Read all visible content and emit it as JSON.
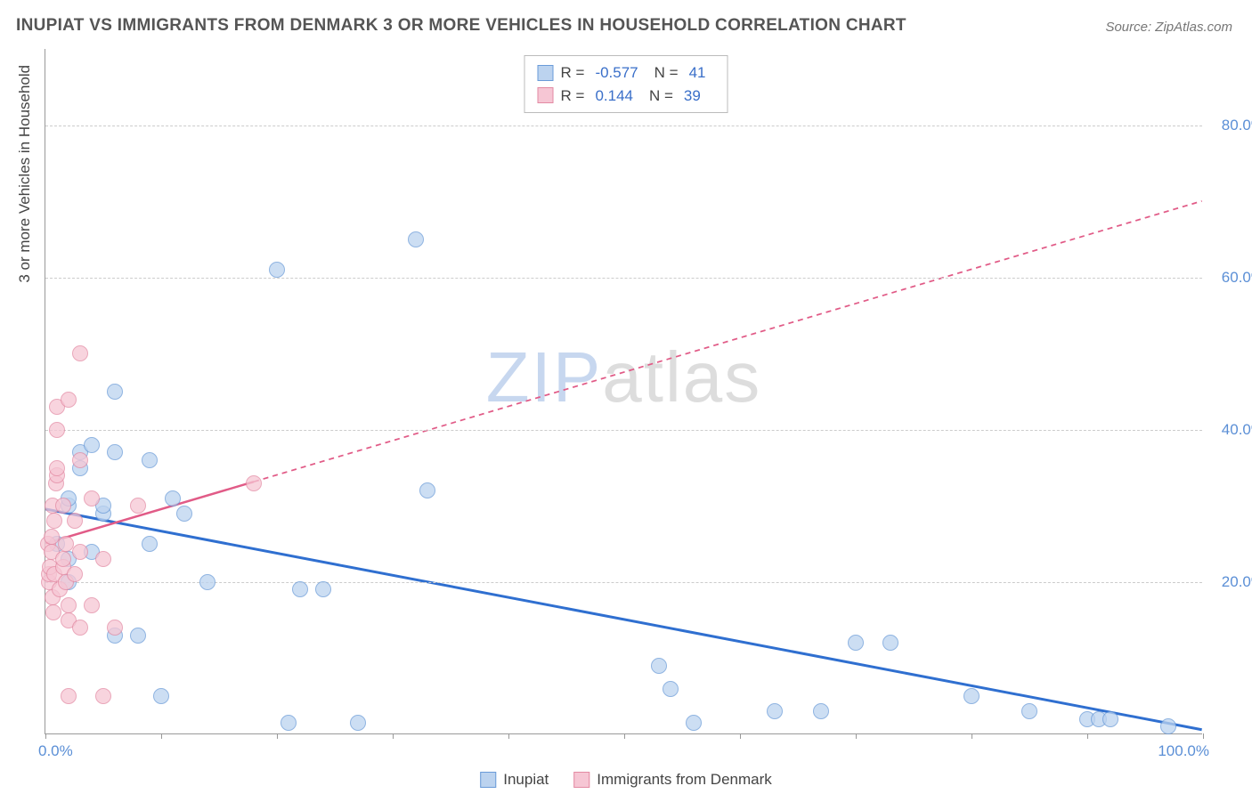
{
  "title": "INUPIAT VS IMMIGRANTS FROM DENMARK 3 OR MORE VEHICLES IN HOUSEHOLD CORRELATION CHART",
  "source": "Source: ZipAtlas.com",
  "watermark": {
    "zip": "ZIP",
    "atlas": "atlas"
  },
  "ylabel": "3 or more Vehicles in Household",
  "chart": {
    "type": "scatter",
    "background_color": "#ffffff",
    "grid_color": "#cccccc",
    "axis_color": "#999999",
    "axis_label_color": "#5b8fd6",
    "xlim": [
      0,
      100
    ],
    "ylim": [
      0,
      90
    ],
    "xticks": [
      0,
      10,
      20,
      30,
      40,
      50,
      60,
      70,
      80,
      90,
      100
    ],
    "xtick_labels": {
      "0": "0.0%",
      "100": "100.0%"
    },
    "yticks": [
      20,
      40,
      60,
      80
    ],
    "ytick_labels": {
      "20": "20.0%",
      "40": "40.0%",
      "60": "60.0%",
      "80": "80.0%"
    },
    "marker_radius": 9,
    "marker_border_width": 1,
    "series": [
      {
        "name": "Inupiat",
        "fill": "#bcd3ef",
        "stroke": "#6a9bd8",
        "fill_opacity": 0.75,
        "trend": {
          "x1": 0,
          "y1": 29.5,
          "x2": 100,
          "y2": 0.5,
          "color": "#2f6fd0",
          "width": 3,
          "dash": "none",
          "solid_to_x": 100
        },
        "points": [
          [
            1,
            25
          ],
          [
            2,
            20
          ],
          [
            2,
            23
          ],
          [
            2,
            30
          ],
          [
            2,
            31
          ],
          [
            3,
            35
          ],
          [
            3,
            37
          ],
          [
            4,
            38
          ],
          [
            4,
            24
          ],
          [
            5,
            29
          ],
          [
            5,
            30
          ],
          [
            6,
            13
          ],
          [
            6,
            37
          ],
          [
            6,
            45
          ],
          [
            8,
            13
          ],
          [
            9,
            36
          ],
          [
            9,
            25
          ],
          [
            10,
            5
          ],
          [
            11,
            31
          ],
          [
            12,
            29
          ],
          [
            14,
            20
          ],
          [
            20,
            61
          ],
          [
            21,
            1.5
          ],
          [
            22,
            19
          ],
          [
            24,
            19
          ],
          [
            27,
            1.5
          ],
          [
            32,
            65
          ],
          [
            33,
            32
          ],
          [
            53,
            9
          ],
          [
            54,
            6
          ],
          [
            56,
            1.5
          ],
          [
            63,
            3
          ],
          [
            67,
            3
          ],
          [
            70,
            12
          ],
          [
            73,
            12
          ],
          [
            80,
            5
          ],
          [
            85,
            3
          ],
          [
            90,
            2
          ],
          [
            91,
            2
          ],
          [
            92,
            2
          ],
          [
            97,
            1
          ]
        ]
      },
      {
        "name": "Immigrants from Denmark",
        "fill": "#f6c6d4",
        "stroke": "#e38aa3",
        "fill_opacity": 0.75,
        "trend": {
          "x1": 0,
          "y1": 25,
          "x2": 100,
          "y2": 70,
          "color": "#e15b87",
          "width": 2.5,
          "dash": "6,5",
          "solid_to_x": 18
        },
        "points": [
          [
            0.2,
            25
          ],
          [
            0.3,
            20
          ],
          [
            0.3,
            21
          ],
          [
            0.4,
            22
          ],
          [
            0.5,
            24
          ],
          [
            0.5,
            26
          ],
          [
            0.6,
            18
          ],
          [
            0.6,
            30
          ],
          [
            0.7,
            16
          ],
          [
            0.8,
            21
          ],
          [
            0.8,
            28
          ],
          [
            0.9,
            33
          ],
          [
            1,
            34
          ],
          [
            1,
            35
          ],
          [
            1,
            40
          ],
          [
            1,
            43
          ],
          [
            1.2,
            19
          ],
          [
            1.5,
            22
          ],
          [
            1.5,
            23
          ],
          [
            1.5,
            30
          ],
          [
            1.8,
            20
          ],
          [
            1.8,
            25
          ],
          [
            2,
            15
          ],
          [
            2,
            17
          ],
          [
            2,
            5
          ],
          [
            2,
            44
          ],
          [
            2.5,
            21
          ],
          [
            2.5,
            28
          ],
          [
            3,
            14
          ],
          [
            3,
            24
          ],
          [
            3,
            36
          ],
          [
            3,
            50
          ],
          [
            4,
            17
          ],
          [
            4,
            31
          ],
          [
            5,
            5
          ],
          [
            5,
            23
          ],
          [
            6,
            14
          ],
          [
            8,
            30
          ],
          [
            18,
            33
          ]
        ]
      }
    ],
    "legend_top": [
      {
        "series_index": 0,
        "r_label": "R =",
        "r_value": "-0.577",
        "n_label": "N =",
        "n_value": "41"
      },
      {
        "series_index": 1,
        "r_label": "R =",
        "r_value": "0.144",
        "n_label": "N =",
        "n_value": "39"
      }
    ],
    "legend_bottom": [
      {
        "series_index": 0,
        "label": "Inupiat"
      },
      {
        "series_index": 1,
        "label": "Immigrants from Denmark"
      }
    ]
  }
}
